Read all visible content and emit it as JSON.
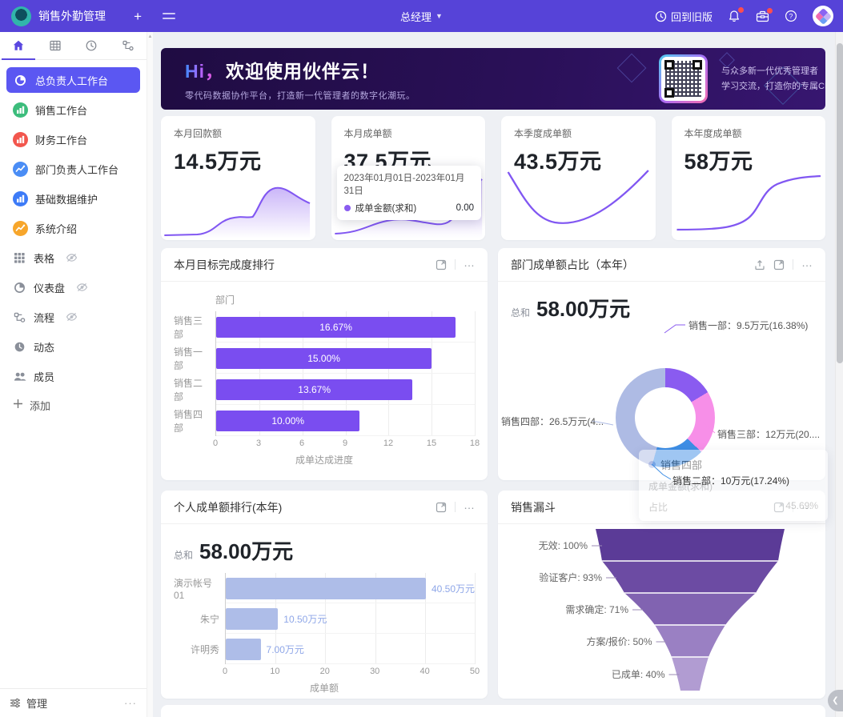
{
  "topbar": {
    "app_title": "销售外勤管理",
    "add_button": "+",
    "role": "总经理",
    "back_to_old": "回到旧版",
    "icons": {
      "back": "history-icon",
      "notice": "bell-icon",
      "workbox": "briefcase-icon",
      "help": "question-icon",
      "avatar": "huoban-logo"
    }
  },
  "sidebar": {
    "workspaces": [
      {
        "label": "总负责人工作台",
        "icon": "pie-chart-icon",
        "color": "#5b57f2",
        "active": true
      },
      {
        "label": "销售工作台",
        "icon": "bar-chart-icon",
        "color": "#3cbd7c",
        "active": false
      },
      {
        "label": "财务工作台",
        "icon": "bar-chart-icon",
        "color": "#f2564d",
        "active": false
      },
      {
        "label": "部门负责人工作台",
        "icon": "trend-icon",
        "color": "#4a8df5",
        "active": false
      },
      {
        "label": "基础数据维护",
        "icon": "bar-chart-icon",
        "color": "#3d7bf7",
        "active": false
      },
      {
        "label": "系统介绍",
        "icon": "trend-icon",
        "color": "#f7a62b",
        "active": false
      }
    ],
    "tools": [
      {
        "label": "表格",
        "icon": "grid-icon",
        "hidden_eye": true
      },
      {
        "label": "仪表盘",
        "icon": "dashboard-icon",
        "hidden_eye": true
      },
      {
        "label": "流程",
        "icon": "flow-icon",
        "hidden_eye": true
      },
      {
        "label": "动态",
        "icon": "clock-icon",
        "hidden_eye": false
      },
      {
        "label": "成员",
        "icon": "members-icon",
        "hidden_eye": false
      }
    ],
    "add_label": "添加",
    "manage_label": "管理"
  },
  "banner": {
    "title_hi": "Hi，",
    "title_rest": "欢迎使用伙伴云！",
    "subtitle": "零代码数据协作平台，打造新一代管理者的数字化潮玩。",
    "qr_caption_line1": "与众多新一代优秀管理者",
    "qr_caption_line2": "学习交流，打造你的专属CRM"
  },
  "stats": [
    {
      "label": "本月回款额",
      "value": "14.5万元"
    },
    {
      "label": "本月成单额",
      "value": "37.5万元",
      "tooltip": {
        "date_range": "2023年01月01日-2023年01月31日",
        "series": "成单金额(求和)",
        "value": "0.00",
        "dot_color": "#8a5cf0"
      }
    },
    {
      "label": "本季度成单额",
      "value": "43.5万元"
    },
    {
      "label": "本年度成单额",
      "value": "58万元"
    }
  ],
  "chart_data": [
    {
      "type": "bar",
      "orientation": "horizontal",
      "title": "本月目标完成度排行",
      "categories": [
        "销售三部",
        "销售一部",
        "销售二部",
        "销售四部"
      ],
      "values": [
        16.67,
        15.0,
        13.67,
        10.0
      ],
      "value_labels": [
        "16.67%",
        "15.00%",
        "13.67%",
        "10.00%"
      ],
      "xlabel": "成单达成进度",
      "ylabel": "部门",
      "xlim": [
        0,
        18
      ],
      "xticks": [
        0,
        3,
        6,
        9,
        12,
        15,
        18
      ],
      "bar_color": "#7a4df0",
      "grid": true,
      "label_position": "inside"
    },
    {
      "type": "pie",
      "title": "部门成单额占比（本年）",
      "total_label": "总和",
      "total_value": "58.00万元",
      "slices": [
        {
          "name": "销售一部",
          "value_wan": 9.5,
          "percent": 16.38,
          "label": "销售一部：9.5万元(16.38%)",
          "color": "#8a5bf0"
        },
        {
          "name": "销售三部",
          "value_wan": 12,
          "percent": 20.69,
          "label": "销售三部：12万元(20....",
          "color": "#f78fe8"
        },
        {
          "name": "销售二部",
          "value_wan": 10,
          "percent": 17.24,
          "label": "销售二部：10万元(17.24%)",
          "color": "#3e8ee5"
        },
        {
          "name": "销售四部",
          "value_wan": 26.5,
          "percent": 45.69,
          "label": "销售四部：26.5万元(4...",
          "color": "#aebbe4"
        }
      ],
      "tooltip": {
        "title": "销售四部",
        "row1_label": "成单金额(求和)",
        "row2_label": "占比",
        "row2_value": "45.69%"
      }
    },
    {
      "type": "bar",
      "orientation": "horizontal",
      "title": "个人成单额排行(本年)",
      "total_label": "总和",
      "total_value": "58.00万元",
      "categories": [
        "演示帐号01",
        "朱宁",
        "许明秀"
      ],
      "values": [
        40.5,
        10.5,
        7.0
      ],
      "value_labels": [
        "40.50万元",
        "10.50万元",
        "7.00万元"
      ],
      "xlabel": "成单额",
      "xlim": [
        0,
        50
      ],
      "xticks": [
        0,
        10,
        20,
        30,
        40,
        50
      ],
      "bar_color": "#aebde8",
      "label_color": "#8fa7e8",
      "grid": true,
      "label_position": "outside"
    },
    {
      "type": "funnel",
      "title": "销售漏斗",
      "levels": [
        {
          "label": "无效: 100%",
          "percent": 100,
          "color": "#5b3b97"
        },
        {
          "label": "验证客户: 93%",
          "percent": 93,
          "color": "#6c4ba3"
        },
        {
          "label": "需求确定: 71%",
          "percent": 71,
          "color": "#8163b1"
        },
        {
          "label": "方案/报价: 50%",
          "percent": 50,
          "color": "#9a80c3"
        },
        {
          "label": "已成单: 40%",
          "percent": 40,
          "color": "#b19cd2"
        }
      ]
    }
  ]
}
